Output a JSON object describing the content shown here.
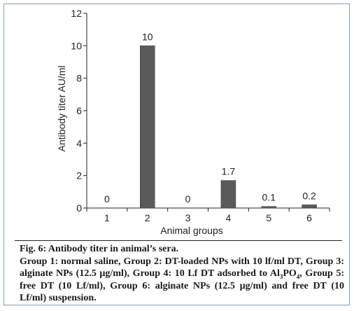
{
  "chart_data": {
    "type": "bar",
    "categories": [
      "1",
      "2",
      "3",
      "4",
      "5",
      "6"
    ],
    "values": [
      0,
      10,
      0,
      1.7,
      0.1,
      0.2
    ],
    "data_labels": [
      "0",
      "10",
      "0",
      "1.7",
      "0.1",
      "0.2"
    ],
    "xlabel": "Animal groups",
    "ylabel": "Antibody titer AU/ml",
    "ylim": [
      0,
      12
    ],
    "yticks": [
      0,
      2,
      4,
      6,
      8,
      10,
      12
    ],
    "grid": false,
    "legend": "none",
    "bar_color": "#5a5a5a"
  },
  "caption": {
    "title": "Fig. 6: Antibody titer in animal’s sera.",
    "part1": "Group 1: normal saline, Group 2: DT-loaded NPs with 10 lf/ml DT, Group 3: alginate NPs (12.5 µg/ml), Group 4: 10 Lf DT adsorbed to Al",
    "sub1": "3",
    "part2": "PO",
    "sub2": "4",
    "part3": ", Group 5: free DT (10 Lf/ml), Group 6: alginate NPs (12.5 µg/ml) and free DT (10 Lf/ml) suspension."
  }
}
